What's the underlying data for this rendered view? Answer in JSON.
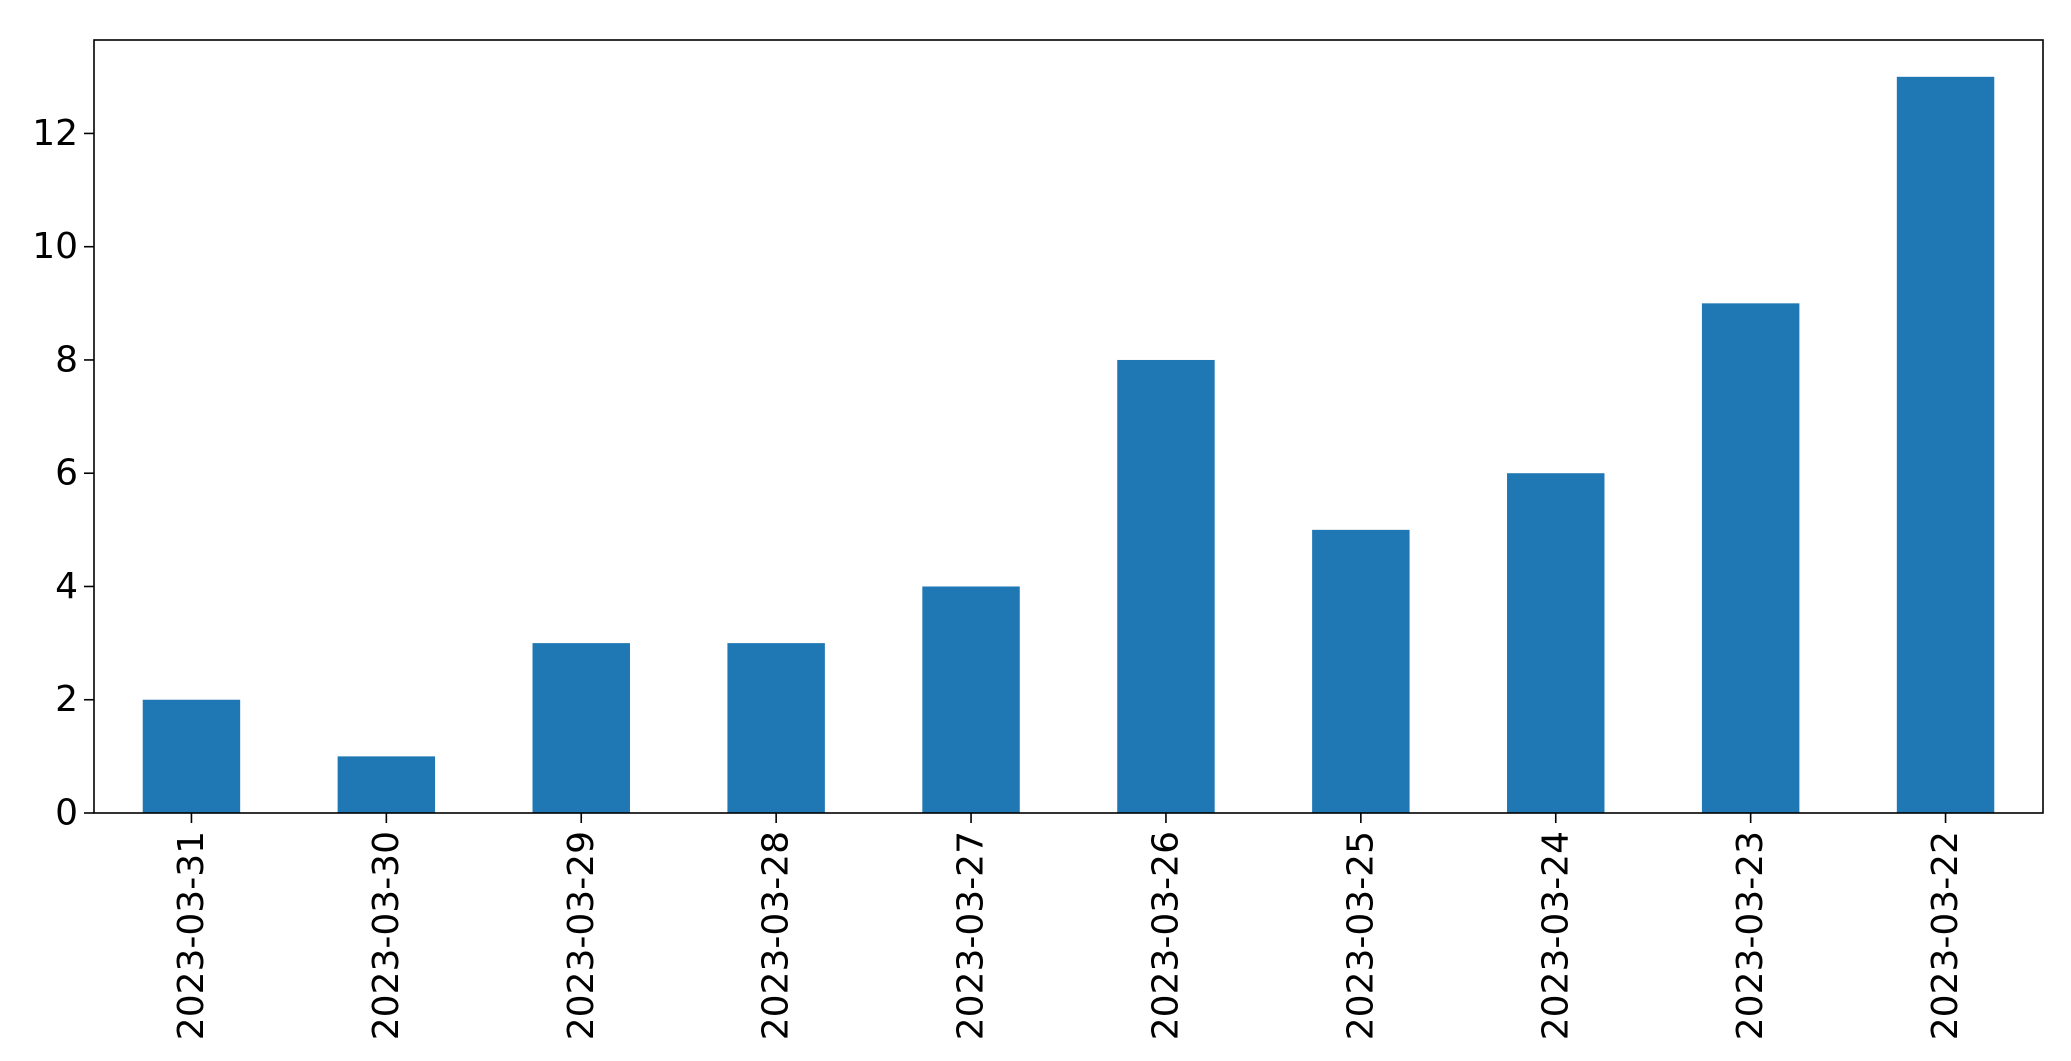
{
  "chart_data": {
    "type": "bar",
    "title": "",
    "xlabel": "",
    "ylabel": "",
    "categories": [
      "2023-03-31",
      "2023-03-30",
      "2023-03-29",
      "2023-03-28",
      "2023-03-27",
      "2023-03-26",
      "2023-03-25",
      "2023-03-24",
      "2023-03-23",
      "2023-03-22"
    ],
    "values": [
      2,
      1,
      3,
      3,
      4,
      8,
      5,
      6,
      9,
      13
    ],
    "yticks": [
      "0",
      "2",
      "4",
      "6",
      "8",
      "10",
      "12"
    ],
    "ylim": [
      0,
      13.65
    ],
    "grid": false,
    "legend": "none",
    "bar_color": "#1f77b4",
    "x_tick_rotation": "vertical"
  }
}
